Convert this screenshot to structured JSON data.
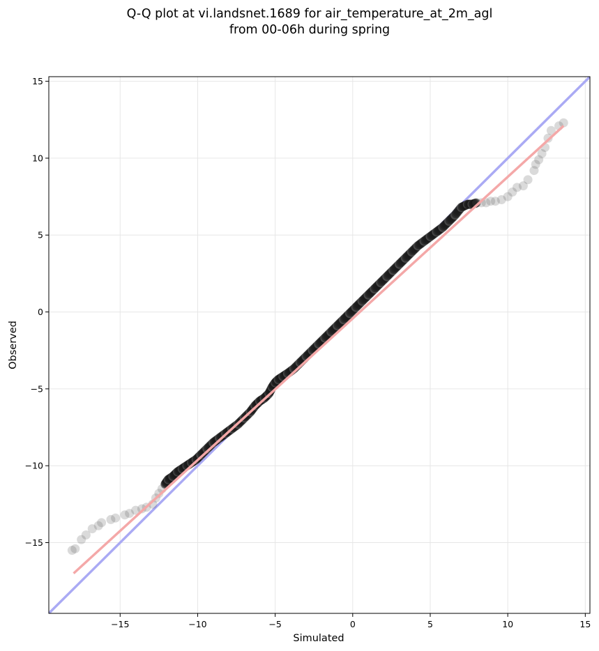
{
  "chart_data": {
    "type": "scatter",
    "title": "Q-Q plot at vi.landsnet.1689 for air_temperature_at_2m_agl",
    "subtitle": "from 00-06h during spring",
    "xlabel": "Simulated",
    "ylabel": "Observed",
    "xlim": [
      -19.6,
      15.3
    ],
    "ylim": [
      -19.6,
      15.3
    ],
    "xticks": [
      -15,
      -10,
      -5,
      0,
      5,
      10,
      15
    ],
    "yticks": [
      -15,
      -10,
      -5,
      0,
      5,
      10,
      15
    ],
    "grid": true,
    "colors": {
      "points": "#555555",
      "identity_line": "#aaaaf4",
      "fit_line": "#f4a8a8"
    },
    "identity_line": {
      "x": [
        -19.6,
        15.3
      ],
      "y": [
        -19.6,
        15.3
      ]
    },
    "fit_line": {
      "x": [
        -18.0,
        13.6
      ],
      "y": [
        -17.0,
        12.1
      ]
    },
    "quantiles": {
      "x": [
        -18.1,
        -17.9,
        -17.5,
        -17.2,
        -16.8,
        -16.4,
        -16.2,
        -15.6,
        -15.3,
        -14.7,
        -14.4,
        -14.0,
        -13.6,
        -13.3,
        -12.9,
        -12.7,
        -12.5,
        -12.3,
        -12.1,
        -11.9,
        -11.6,
        -11.3,
        -11.0,
        -10.7,
        -10.4,
        -10.1,
        -9.8,
        -9.4,
        -9.0,
        -8.6,
        -8.2,
        -7.8,
        -7.4,
        -7.0,
        -6.6,
        -6.3,
        -6.0,
        -5.7,
        -5.4,
        -5.2,
        -5.0,
        -4.8,
        -4.5,
        -4.2,
        -3.8,
        -3.4,
        -3.0,
        -2.6,
        -2.2,
        -1.8,
        -1.4,
        -1.0,
        -0.6,
        -0.2,
        0.2,
        0.6,
        1.0,
        1.4,
        1.8,
        2.2,
        2.6,
        3.0,
        3.4,
        3.8,
        4.2,
        4.6,
        5.0,
        5.4,
        5.8,
        6.2,
        6.6,
        7.0,
        7.4,
        7.7,
        8.0,
        8.3,
        8.6,
        8.9,
        9.2,
        9.6,
        10.0,
        10.3,
        10.6,
        11.0,
        11.3,
        11.7,
        11.8,
        12.0,
        12.2,
        12.4,
        12.6,
        12.8,
        13.3,
        13.6
      ],
      "y": [
        -15.5,
        -15.4,
        -14.8,
        -14.5,
        -14.1,
        -13.9,
        -13.7,
        -13.5,
        -13.4,
        -13.2,
        -13.1,
        -12.9,
        -12.8,
        -12.7,
        -12.5,
        -12.1,
        -11.8,
        -11.5,
        -11.2,
        -10.9,
        -10.7,
        -10.4,
        -10.2,
        -10.0,
        -9.8,
        -9.6,
        -9.3,
        -8.9,
        -8.5,
        -8.2,
        -7.9,
        -7.6,
        -7.3,
        -6.9,
        -6.5,
        -6.1,
        -5.8,
        -5.6,
        -5.3,
        -4.9,
        -4.6,
        -4.4,
        -4.2,
        -4.0,
        -3.7,
        -3.3,
        -2.9,
        -2.5,
        -2.1,
        -1.7,
        -1.3,
        -0.9,
        -0.5,
        -0.1,
        0.3,
        0.7,
        1.1,
        1.5,
        1.9,
        2.3,
        2.7,
        3.1,
        3.5,
        3.9,
        4.3,
        4.6,
        4.9,
        5.2,
        5.5,
        5.9,
        6.3,
        6.8,
        7.0,
        7.0,
        7.1,
        7.1,
        7.1,
        7.2,
        7.2,
        7.3,
        7.5,
        7.8,
        8.1,
        8.2,
        8.6,
        9.2,
        9.6,
        9.9,
        10.3,
        10.7,
        11.3,
        11.8,
        12.1,
        12.3
      ]
    }
  }
}
